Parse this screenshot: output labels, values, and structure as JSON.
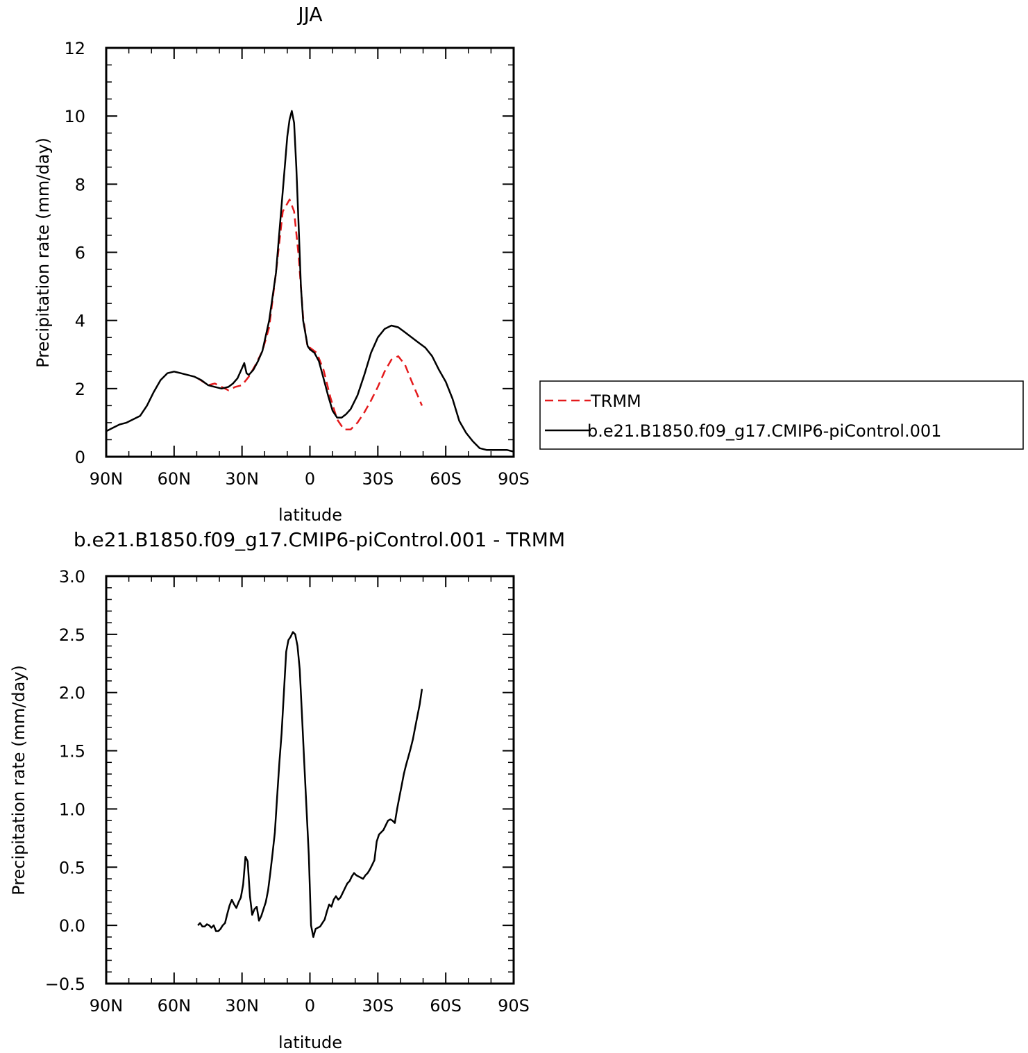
{
  "chart_data": [
    {
      "type": "line",
      "title": "JJA",
      "xlabel": "latitude",
      "ylabel": "Precipitation rate (mm/day)",
      "xlim": [
        90,
        -90
      ],
      "ylim": [
        0,
        12
      ],
      "x_ticks": [
        90,
        60,
        30,
        0,
        -30,
        -60,
        -90
      ],
      "x_tick_labels": [
        "90N",
        "60N",
        "30N",
        "0",
        "30S",
        "60S",
        "90S"
      ],
      "y_ticks": [
        0,
        2,
        4,
        6,
        8,
        10,
        12
      ],
      "y_tick_labels": [
        "0",
        "2",
        "4",
        "6",
        "8",
        "10",
        "12"
      ],
      "grid": false,
      "legend_position": "right",
      "series": [
        {
          "name": "TRMM",
          "color": "#e41a1c",
          "dash": "dashed",
          "x": [
            49.5,
            45,
            42,
            39,
            36,
            33,
            30,
            27,
            24,
            21,
            18,
            15,
            12,
            9,
            7,
            5,
            3,
            1,
            0,
            -1,
            -3,
            -6,
            -9,
            -12,
            -15,
            -18,
            -21,
            -24,
            -27,
            -30,
            -33,
            -36,
            -39,
            -42,
            -45,
            -49.5
          ],
          "y": [
            2.3,
            2.1,
            2.15,
            2.05,
            1.95,
            2.05,
            2.1,
            2.35,
            2.7,
            3.1,
            3.8,
            5.4,
            7.2,
            7.55,
            7.2,
            5.9,
            4.1,
            3.2,
            3.2,
            3.15,
            3.05,
            2.55,
            1.75,
            1.1,
            0.8,
            0.8,
            1.0,
            1.3,
            1.65,
            2.05,
            2.5,
            2.85,
            2.95,
            2.7,
            2.2,
            1.5
          ]
        },
        {
          "name": "b.e21.B1850.f09_g17.CMIP6-piControl.001",
          "color": "#000000",
          "dash": "solid",
          "x": [
            90,
            87,
            84,
            81,
            78,
            75,
            72,
            69,
            66,
            63,
            60,
            57,
            54,
            51,
            48,
            45,
            42,
            39,
            36,
            34,
            32,
            30,
            29,
            28,
            27,
            25,
            23,
            21,
            18,
            15,
            12,
            10,
            9,
            8,
            7,
            6,
            5,
            4,
            3,
            1,
            0,
            -2,
            -4,
            -6,
            -8,
            -10,
            -12,
            -14,
            -16,
            -18,
            -21,
            -24,
            -27,
            -30,
            -33,
            -36,
            -39,
            -42,
            -45,
            -48,
            -51,
            -54,
            -57,
            -60,
            -63,
            -66,
            -69,
            -72,
            -75,
            -78,
            -81,
            -84,
            -87,
            -90
          ],
          "y": [
            0.75,
            0.85,
            0.95,
            1.0,
            1.1,
            1.2,
            1.5,
            1.9,
            2.25,
            2.45,
            2.5,
            2.45,
            2.4,
            2.35,
            2.25,
            2.1,
            2.05,
            2.0,
            2.05,
            2.15,
            2.3,
            2.6,
            2.75,
            2.45,
            2.4,
            2.55,
            2.8,
            3.1,
            4.0,
            5.4,
            7.8,
            9.4,
            9.9,
            10.15,
            9.8,
            8.5,
            6.8,
            5.0,
            4.0,
            3.25,
            3.15,
            3.05,
            2.8,
            2.3,
            1.8,
            1.35,
            1.15,
            1.15,
            1.25,
            1.4,
            1.8,
            2.4,
            3.05,
            3.5,
            3.75,
            3.85,
            3.8,
            3.65,
            3.5,
            3.35,
            3.2,
            2.95,
            2.55,
            2.2,
            1.7,
            1.05,
            0.7,
            0.45,
            0.25,
            0.2,
            0.2,
            0.2,
            0.2,
            0.15
          ]
        }
      ]
    },
    {
      "type": "line",
      "title": "b.e21.B1850.f09_g17.CMIP6-piControl.001 - TRMM",
      "xlabel": "latitude",
      "ylabel": "Precipitation rate (mm/day)",
      "xlim": [
        90,
        -90
      ],
      "ylim": [
        -0.5,
        3.0
      ],
      "x_ticks": [
        90,
        60,
        30,
        0,
        -30,
        -60,
        -90
      ],
      "x_tick_labels": [
        "90N",
        "60N",
        "30N",
        "0",
        "30S",
        "60S",
        "90S"
      ],
      "y_ticks": [
        -0.5,
        0.0,
        0.5,
        1.0,
        1.5,
        2.0,
        2.5,
        3.0
      ],
      "y_tick_labels": [
        "−0.5",
        "0.0",
        "0.5",
        "1.0",
        "1.5",
        "2.0",
        "2.5",
        "3.0"
      ],
      "grid": false,
      "series": [
        {
          "color": "#000000",
          "dash": "solid",
          "x": [
            49.5,
            48.5,
            47.5,
            46.5,
            45.5,
            44.5,
            43.5,
            42.5,
            41.5,
            40.5,
            39.5,
            38.5,
            37.5,
            36.5,
            35.5,
            34.5,
            33.5,
            32.5,
            31.5,
            30.5,
            29.5,
            28.5,
            27.5,
            26.5,
            25.5,
            24.5,
            23.5,
            22.5,
            21.5,
            20.5,
            19.5,
            18.5,
            17.5,
            16.5,
            15.5,
            14.5,
            13.5,
            12.5,
            11.5,
            10.5,
            9.5,
            8.5,
            7.5,
            6.5,
            5.5,
            4.5,
            3.5,
            2.5,
            1.5,
            0.5,
            -0.5,
            -1.5,
            -2.5,
            -3.5,
            -4.5,
            -5.5,
            -6.5,
            -7.5,
            -8.5,
            -9.5,
            -10.5,
            -11.5,
            -12.5,
            -13.5,
            -14.5,
            -15.5,
            -16.5,
            -17.5,
            -18.5,
            -19.5,
            -20.5,
            -21.5,
            -22.5,
            -23.5,
            -24.5,
            -25.5,
            -26.5,
            -27.5,
            -28.5,
            -29.5,
            -30.5,
            -31.5,
            -32.5,
            -33.5,
            -34.5,
            -35.5,
            -36.5,
            -37.5,
            -38.5,
            -39.5,
            -40.5,
            -41.5,
            -42.5,
            -43.5,
            -44.5,
            -45.5,
            -46.5,
            -47.5,
            -48.5,
            -49.5
          ],
          "y": [
            0.0,
            0.02,
            -0.01,
            -0.01,
            0.01,
            0.0,
            -0.02,
            0.0,
            -0.05,
            -0.05,
            -0.03,
            0.0,
            0.02,
            0.1,
            0.17,
            0.22,
            0.18,
            0.15,
            0.2,
            0.24,
            0.35,
            0.59,
            0.55,
            0.25,
            0.09,
            0.14,
            0.16,
            0.04,
            0.08,
            0.14,
            0.2,
            0.3,
            0.45,
            0.62,
            0.8,
            1.1,
            1.4,
            1.65,
            2.0,
            2.35,
            2.45,
            2.48,
            2.52,
            2.5,
            2.4,
            2.2,
            1.8,
            1.4,
            1.0,
            0.6,
            0.0,
            -0.1,
            -0.03,
            -0.02,
            -0.01,
            0.02,
            0.05,
            0.12,
            0.18,
            0.16,
            0.22,
            0.25,
            0.22,
            0.24,
            0.28,
            0.32,
            0.36,
            0.38,
            0.42,
            0.45,
            0.43,
            0.42,
            0.41,
            0.4,
            0.43,
            0.45,
            0.48,
            0.52,
            0.56,
            0.72,
            0.78,
            0.8,
            0.82,
            0.86,
            0.9,
            0.91,
            0.9,
            0.88,
            1.0,
            1.1,
            1.2,
            1.3,
            1.38,
            1.45,
            1.52,
            1.6,
            1.7,
            1.8,
            1.9,
            2.03
          ]
        }
      ]
    }
  ]
}
